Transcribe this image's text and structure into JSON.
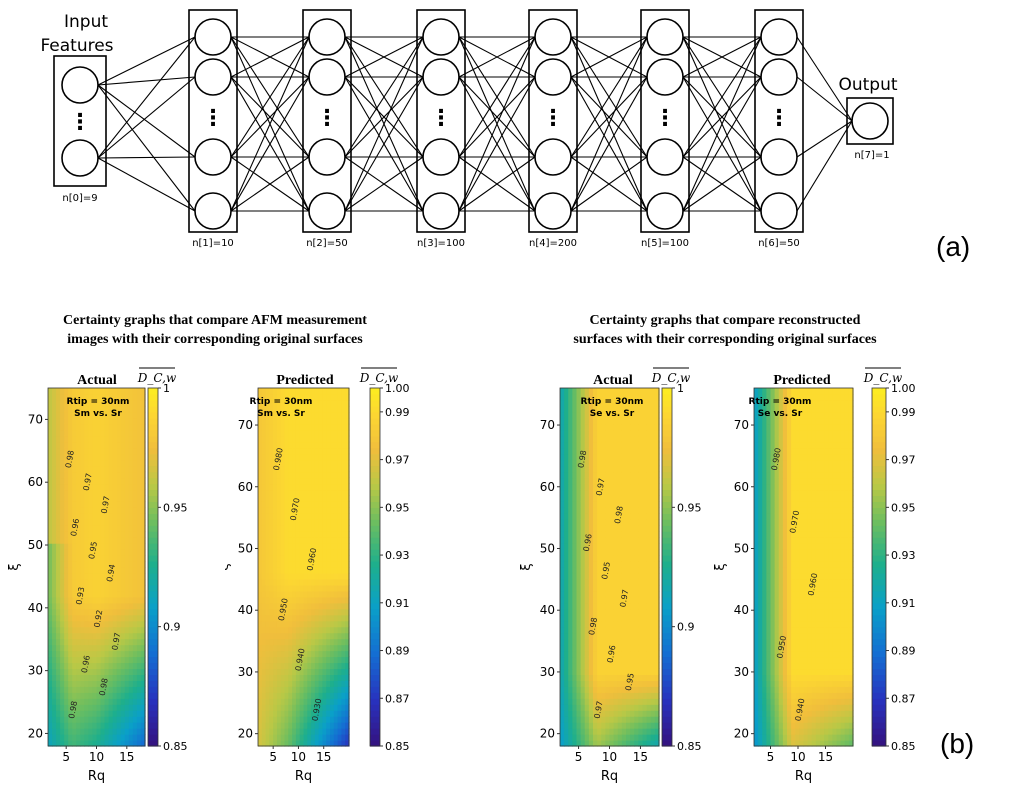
{
  "network": {
    "input_label_line1": "Input",
    "input_label_line2": "Features",
    "output_label": "Output",
    "input_nodes_label": "n[0]=9",
    "output_nodes_label": "n[7]=1",
    "hidden_layers": [
      {
        "label": "n[1]=10"
      },
      {
        "label": "n[2]=50"
      },
      {
        "label": "n[3]=100"
      },
      {
        "label": "n[4]=200"
      },
      {
        "label": "n[5]=100"
      },
      {
        "label": "n[6]=50"
      }
    ],
    "ellipsis": "⋮",
    "tag": "(a)"
  },
  "section_b": {
    "tag": "(b)",
    "left_title_line1": "Certainty graphs that compare AFM measurement",
    "left_title_line2": "images with their corresponding original surfaces",
    "right_title_line1": "Certainty graphs that compare reconstructed",
    "right_title_line2": "surfaces with their corresponding original surfaces"
  },
  "chart_data": [
    {
      "type": "heatmap",
      "title": "Actual",
      "annotation_line1": "Rtip = 30nm",
      "annotation_line2": "Sm vs. Sr",
      "xlabel": "Rq",
      "ylabel": "ξ",
      "xlim": [
        2,
        18
      ],
      "ylim": [
        18,
        75
      ],
      "xticks": [
        5,
        10,
        15
      ],
      "yticks": [
        20,
        30,
        40,
        50,
        60,
        70
      ],
      "colorbar_title": "D_C,w",
      "colorbar_ticks": [
        {
          "value": 1.0,
          "label": "1"
        },
        {
          "value": 0.95,
          "label": "0.95"
        },
        {
          "value": 0.9,
          "label": "0.9"
        },
        {
          "value": 0.85,
          "label": "0.85"
        }
      ],
      "colorbar_range": [
        0.85,
        1.0
      ],
      "contour_labels": [
        "0.98",
        "0.97",
        "0.97",
        "0.96",
        "0.95",
        "0.94",
        "0.93",
        "0.92",
        "0.97",
        "0.96",
        "0.98",
        "0.98"
      ]
    },
    {
      "type": "heatmap",
      "title": "Predicted",
      "annotation_line1": "Rtip = 30nm",
      "annotation_line2": "Sm vs. Sr",
      "xlabel": "Rq",
      "ylabel": "ξ",
      "xlim": [
        2,
        20
      ],
      "ylim": [
        18,
        76
      ],
      "xticks": [
        5,
        10,
        15
      ],
      "yticks": [
        20,
        30,
        40,
        50,
        60,
        70
      ],
      "colorbar_title": "D_C,w",
      "colorbar_ticks": [
        {
          "value": 1.0,
          "label": "1.00"
        },
        {
          "value": 0.99,
          "label": "0.99"
        },
        {
          "value": 0.97,
          "label": "0.97"
        },
        {
          "value": 0.95,
          "label": "0.95"
        },
        {
          "value": 0.93,
          "label": "0.93"
        },
        {
          "value": 0.91,
          "label": "0.91"
        },
        {
          "value": 0.89,
          "label": "0.89"
        },
        {
          "value": 0.87,
          "label": "0.87"
        },
        {
          "value": 0.85,
          "label": "0.85"
        }
      ],
      "colorbar_range": [
        0.85,
        1.0
      ],
      "contour_labels": [
        "0.980",
        "0.970",
        "0.960",
        "0.950",
        "0.940",
        "0.930"
      ]
    },
    {
      "type": "heatmap",
      "title": "Actual",
      "annotation_line1": "Rtip = 30nm",
      "annotation_line2": "Se vs. Sr",
      "xlabel": "Rq",
      "ylabel": "ξ",
      "xlim": [
        2,
        18
      ],
      "ylim": [
        18,
        76
      ],
      "xticks": [
        5,
        10,
        15
      ],
      "yticks": [
        20,
        30,
        40,
        50,
        60,
        70
      ],
      "colorbar_title": "D_C,w",
      "colorbar_ticks": [
        {
          "value": 1.0,
          "label": "1"
        },
        {
          "value": 0.95,
          "label": "0.95"
        },
        {
          "value": 0.9,
          "label": "0.9"
        },
        {
          "value": 0.85,
          "label": "0.85"
        }
      ],
      "colorbar_range": [
        0.85,
        1.0
      ],
      "contour_labels": [
        "0.98",
        "0.97",
        "0.98",
        "0.96",
        "0.95",
        "0.97",
        "0.98",
        "0.96",
        "0.95",
        "0.97"
      ]
    },
    {
      "type": "heatmap",
      "title": "Predicted",
      "annotation_line1": "Rtip = 30nm",
      "annotation_line2": "Se vs. Sr",
      "xlabel": "Rq",
      "ylabel": "ξ",
      "xlim": [
        2,
        20
      ],
      "ylim": [
        18,
        76
      ],
      "xticks": [
        5,
        10,
        15
      ],
      "yticks": [
        20,
        30,
        40,
        50,
        60,
        70
      ],
      "colorbar_title": "D_C,w",
      "colorbar_ticks": [
        {
          "value": 1.0,
          "label": "1.00"
        },
        {
          "value": 0.99,
          "label": "0.99"
        },
        {
          "value": 0.97,
          "label": "0.97"
        },
        {
          "value": 0.95,
          "label": "0.95"
        },
        {
          "value": 0.93,
          "label": "0.93"
        },
        {
          "value": 0.91,
          "label": "0.91"
        },
        {
          "value": 0.89,
          "label": "0.89"
        },
        {
          "value": 0.87,
          "label": "0.87"
        },
        {
          "value": 0.85,
          "label": "0.85"
        }
      ],
      "colorbar_range": [
        0.85,
        1.0
      ],
      "contour_labels": [
        "0.980",
        "0.970",
        "0.960",
        "0.950",
        "0.940"
      ]
    }
  ]
}
